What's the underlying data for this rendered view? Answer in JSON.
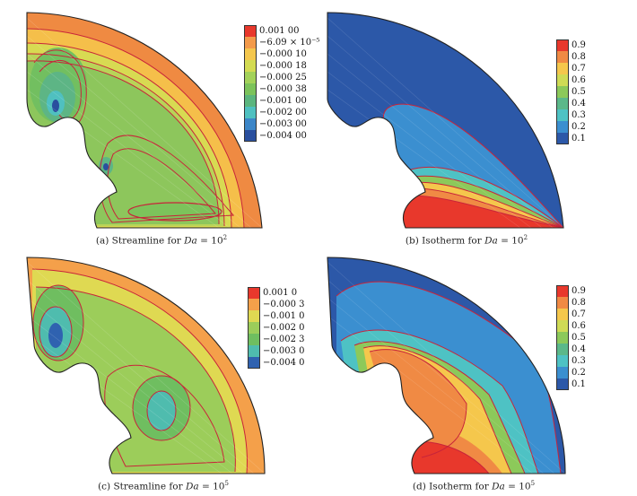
{
  "panels": [
    {
      "caption_prefix": "(a) Streamline for ",
      "caption_var": "Da",
      "caption_eq": " = 10",
      "caption_exp": "2",
      "legend": [
        {
          "label": "0.001 00",
          "color": "#e8382c"
        },
        {
          "label": "−6.09 × 10⁻⁵",
          "color": "#f39a4a"
        },
        {
          "label": "−0.000 10",
          "color": "#f4c74e"
        },
        {
          "label": "−0.000 18",
          "color": "#d3db52"
        },
        {
          "label": "−0.000 25",
          "color": "#a3d25a"
        },
        {
          "label": "−0.000 38",
          "color": "#7cc35b"
        },
        {
          "label": "−0.001 00",
          "color": "#5bb57e"
        },
        {
          "label": "−0.002 00",
          "color": "#4fc0c0"
        },
        {
          "label": "−0.003 00",
          "color": "#3c86c8"
        },
        {
          "label": "−0.004 00",
          "color": "#2a4f9e"
        }
      ]
    },
    {
      "caption_prefix": "(b) Isotherm for ",
      "caption_var": "Da",
      "caption_eq": " = 10",
      "caption_exp": "2",
      "legend": [
        {
          "label": "0.9",
          "color": "#e8382c"
        },
        {
          "label": "0.8",
          "color": "#f08a44"
        },
        {
          "label": "0.7",
          "color": "#f5c74c"
        },
        {
          "label": "0.6",
          "color": "#cfdb55"
        },
        {
          "label": "0.5",
          "color": "#8cc95a"
        },
        {
          "label": "0.4",
          "color": "#5bb88a"
        },
        {
          "label": "0.3",
          "color": "#4ec2c4"
        },
        {
          "label": "0.2",
          "color": "#3b8fd0"
        },
        {
          "label": "0.1",
          "color": "#2c58a8"
        }
      ]
    },
    {
      "caption_prefix": "(c) Streamline for ",
      "caption_var": "Da",
      "caption_eq": " = 10",
      "caption_exp": "5",
      "legend": [
        {
          "label": "0.001 0",
          "color": "#e8382c"
        },
        {
          "label": "−0.000 3",
          "color": "#f4a04a"
        },
        {
          "label": "−0.001 0",
          "color": "#dfd952"
        },
        {
          "label": "−0.002 0",
          "color": "#9ccd5a"
        },
        {
          "label": "−0.002 3",
          "color": "#6fbe60"
        },
        {
          "label": "−0.003 0",
          "color": "#4fbcae"
        },
        {
          "label": "−0.004 0",
          "color": "#2f62b0"
        }
      ]
    },
    {
      "caption_prefix": "(d) Isotherm for ",
      "caption_var": "Da",
      "caption_eq": " = 10",
      "caption_exp": "5",
      "legend": [
        {
          "label": "0.9",
          "color": "#e8382c"
        },
        {
          "label": "0.8",
          "color": "#f08a44"
        },
        {
          "label": "0.7",
          "color": "#f5c74c"
        },
        {
          "label": "0.6",
          "color": "#cfdb55"
        },
        {
          "label": "0.5",
          "color": "#8cc95a"
        },
        {
          "label": "0.4",
          "color": "#5bb88a"
        },
        {
          "label": "0.3",
          "color": "#4ec2c4"
        },
        {
          "label": "0.2",
          "color": "#3b8fd0"
        },
        {
          "label": "0.1",
          "color": "#2c58a8"
        }
      ]
    }
  ]
}
